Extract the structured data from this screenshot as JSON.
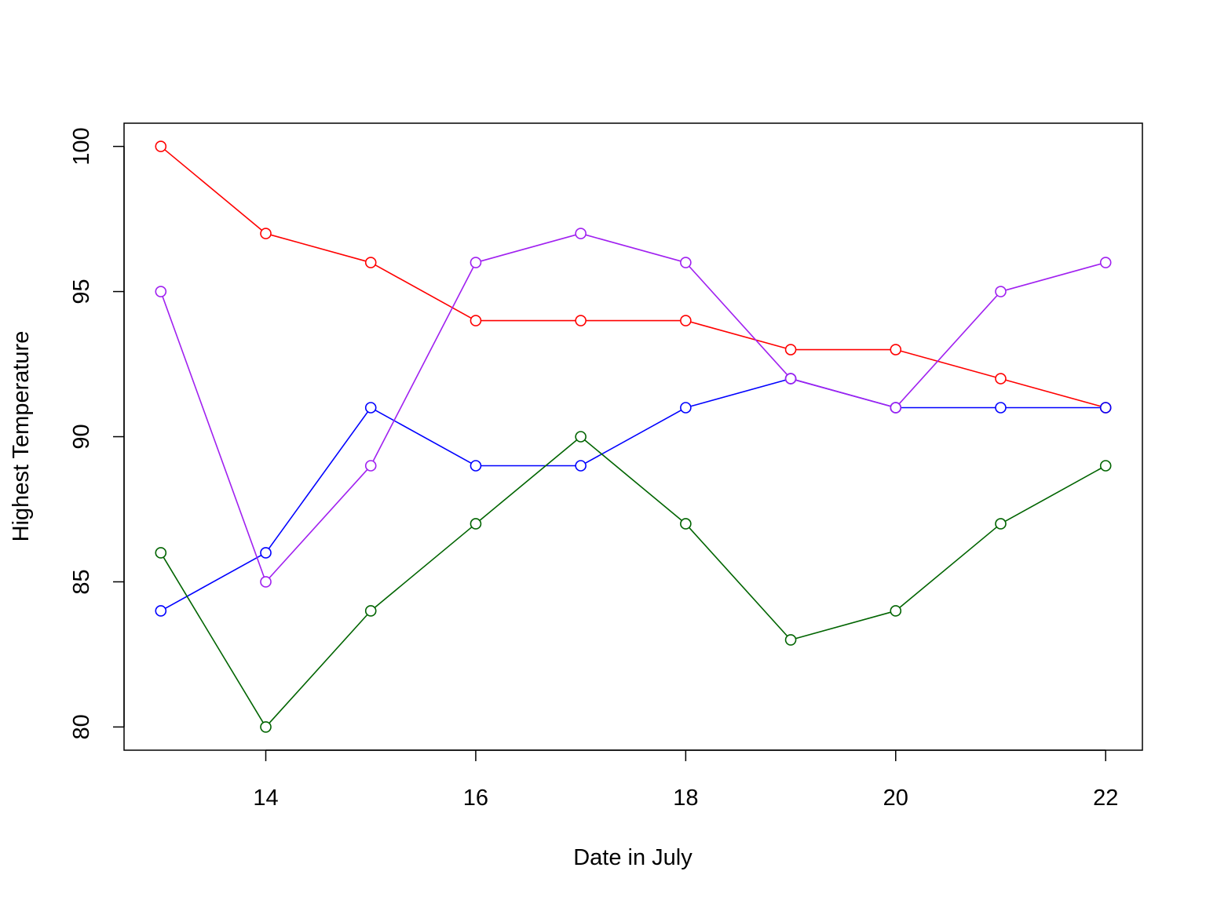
{
  "chart_data": {
    "type": "line",
    "title": "",
    "xlabel": "Date in July",
    "ylabel": "Highest Temperature",
    "x": [
      13,
      14,
      15,
      16,
      17,
      18,
      19,
      20,
      21,
      22
    ],
    "xlim": [
      12.65,
      22.35
    ],
    "ylim": [
      79.2,
      100.8
    ],
    "x_ticks": [
      14,
      16,
      18,
      20,
      22
    ],
    "y_ticks": [
      80,
      85,
      90,
      95,
      100
    ],
    "grid": false,
    "legend": "none",
    "series": [
      {
        "color": "#ff0000",
        "values": [
          100,
          97,
          96,
          94,
          94,
          94,
          93,
          93,
          92,
          91
        ]
      },
      {
        "color": "#0000ff",
        "values": [
          84,
          86,
          91,
          89,
          89,
          91,
          92,
          91,
          91,
          91
        ]
      },
      {
        "color": "#006400",
        "values": [
          86,
          80,
          84,
          87,
          90,
          87,
          83,
          84,
          87,
          89
        ]
      },
      {
        "color": "#a020f0",
        "values": [
          95,
          85,
          89,
          96,
          97,
          96,
          92,
          91,
          95,
          96
        ]
      }
    ]
  }
}
